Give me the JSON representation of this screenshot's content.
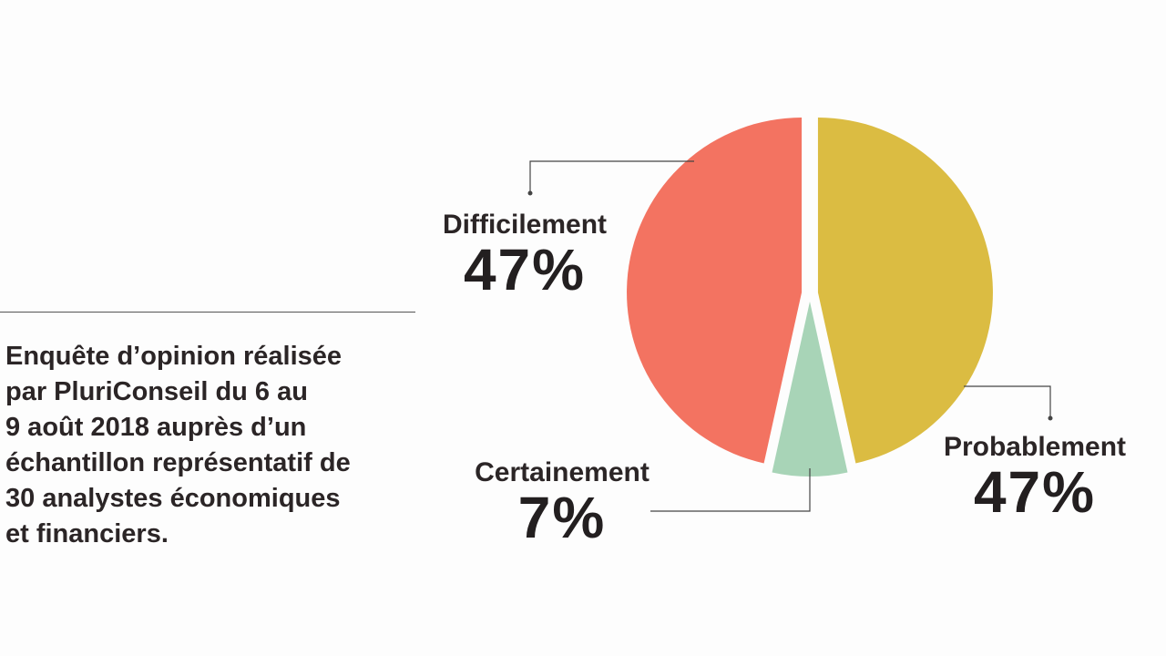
{
  "note": {
    "lines": [
      "Enquête d’opinion réalisée",
      "par PluriConseil du 6 au",
      "9 août 2018 auprès d’un",
      "échantillon représentatif de",
      "30 analystes économiques",
      "et financiers."
    ]
  },
  "chart_data": {
    "type": "pie",
    "title": "",
    "categories": [
      "Difficilement",
      "Probablement",
      "Certainement"
    ],
    "values": [
      47,
      47,
      7
    ],
    "labels": [
      "47%",
      "47%",
      "7%"
    ],
    "colors": [
      "#f37361",
      "#dbbc42",
      "#a8d4b7"
    ],
    "slice_order": [
      "Probablement",
      "Certainement",
      "Difficilement"
    ],
    "legend": "callout labels"
  }
}
